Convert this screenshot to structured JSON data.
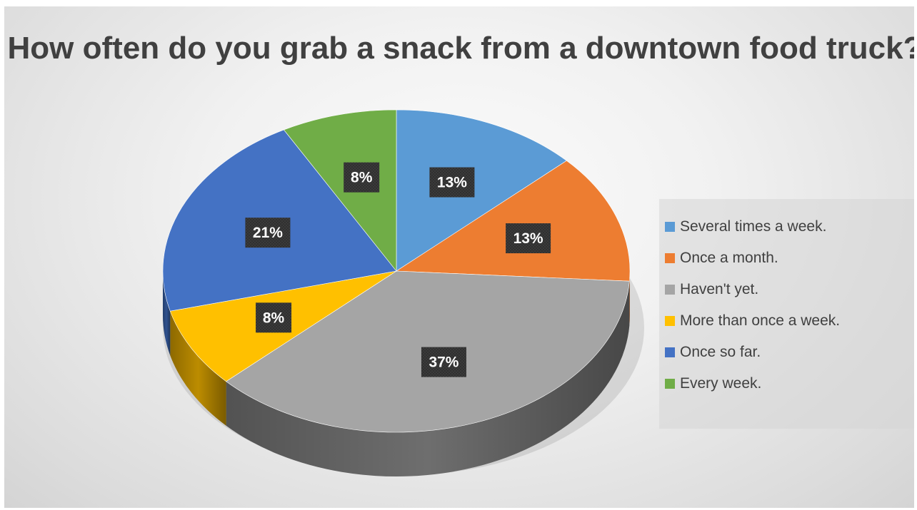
{
  "chart_data": {
    "type": "pie",
    "title": "How often do you grab a snack from a downtown food truck?",
    "slices": [
      {
        "label": "Several times a week.",
        "value": 13,
        "display": "13%",
        "color": "#5B9BD5",
        "side": "#41719C"
      },
      {
        "label": "Once a month.",
        "value": 13,
        "display": "13%",
        "color": "#ED7D31",
        "side": "#AE5A21"
      },
      {
        "label": "Haven't yet.",
        "value": 37,
        "display": "37%",
        "color": "#A5A5A5",
        "side": "#6E6E6E"
      },
      {
        "label": "More than once a week.",
        "value": 8,
        "display": "8%",
        "color": "#FFC000",
        "side": "#BC8C00"
      },
      {
        "label": "Once so far.",
        "value": 21,
        "display": "21%",
        "color": "#4472C4",
        "side": "#2F528F"
      },
      {
        "label": "Every week.",
        "value": 8,
        "display": "8%",
        "color": "#70AD47",
        "side": "#507E32"
      }
    ],
    "legend_position": "right",
    "label_style": "dark callout boxes"
  }
}
